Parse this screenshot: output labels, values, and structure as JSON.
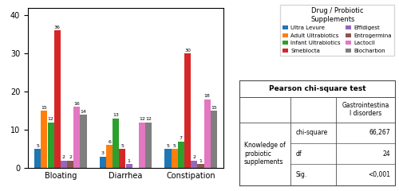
{
  "chart_data": {
    "type": "bar",
    "categories": [
      "Bloating",
      "Diarrhea",
      "Constipation"
    ],
    "series": [
      {
        "name": "Ultra Levure",
        "values": [
          5,
          3,
          5
        ]
      },
      {
        "name": "Adult Ultrabiotics",
        "values": [
          15,
          6,
          5
        ]
      },
      {
        "name": "Infant Ultrabiotics",
        "values": [
          12,
          13,
          7
        ]
      },
      {
        "name": "Smeblocta",
        "values": [
          36,
          5,
          30
        ]
      },
      {
        "name": "Effidigest",
        "values": [
          2,
          1,
          2
        ]
      },
      {
        "name": "Entrogermina",
        "values": [
          2,
          0,
          1
        ],
        "value_labels": [
          "2",
          null,
          "1"
        ]
      },
      {
        "name": "Lactocil",
        "values": [
          16,
          12,
          18
        ]
      },
      {
        "name": "Biocharbon",
        "values": [
          14,
          12,
          15
        ]
      }
    ],
    "ylim": [
      0,
      42
    ],
    "yticks": [
      0,
      10,
      20,
      30,
      40
    ],
    "data_labels": true,
    "grid": false,
    "legend": "upper right",
    "legend_title": "Drug / Probiotic\nSupplements",
    "table": {
      "title": "Pearson chi-square test",
      "column_header": "Gastrointestina\nl disorders",
      "row_label": "Knowledge of\nprobiotic\nsupplements",
      "rows": [
        [
          "chi-square",
          "66,267"
        ],
        [
          "df",
          "24"
        ],
        [
          "Sig.",
          "<0,001"
        ]
      ]
    }
  }
}
